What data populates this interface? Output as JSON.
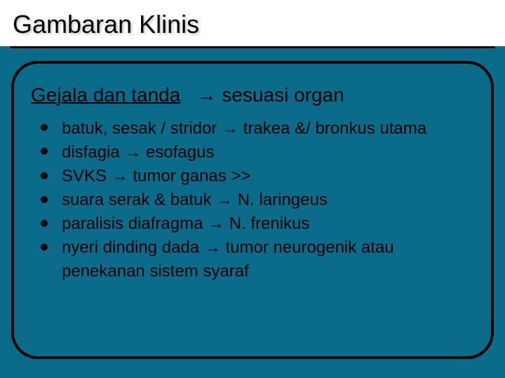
{
  "slide": {
    "background_color": "#0a6b8a",
    "header_background": "#ffffff",
    "title_color": "#000000",
    "title_fontsize": 36,
    "subtitle_fontsize": 28,
    "body_fontsize": 24,
    "border_color": "#000000",
    "border_width": 4,
    "border_radius": 38,
    "bullet_color": "#000000",
    "bullet_diameter": 10,
    "arrow_glyph": "→"
  },
  "title": "Gambaran Klinis",
  "subtitle": {
    "underlined": "Gejala dan tanda",
    "arrow": "→",
    "rest": "sesuasi organ"
  },
  "items": [
    "batuk, sesak / stridor → trakea &/ bronkus utama",
    "disfagia → esofagus",
    "SVKS → tumor ganas >>",
    "suara serak & batuk → N. laringeus",
    "paralisis diafragma → N. frenikus",
    "nyeri dinding dada → tumor neurogenik atau penekanan sistem syaraf"
  ]
}
